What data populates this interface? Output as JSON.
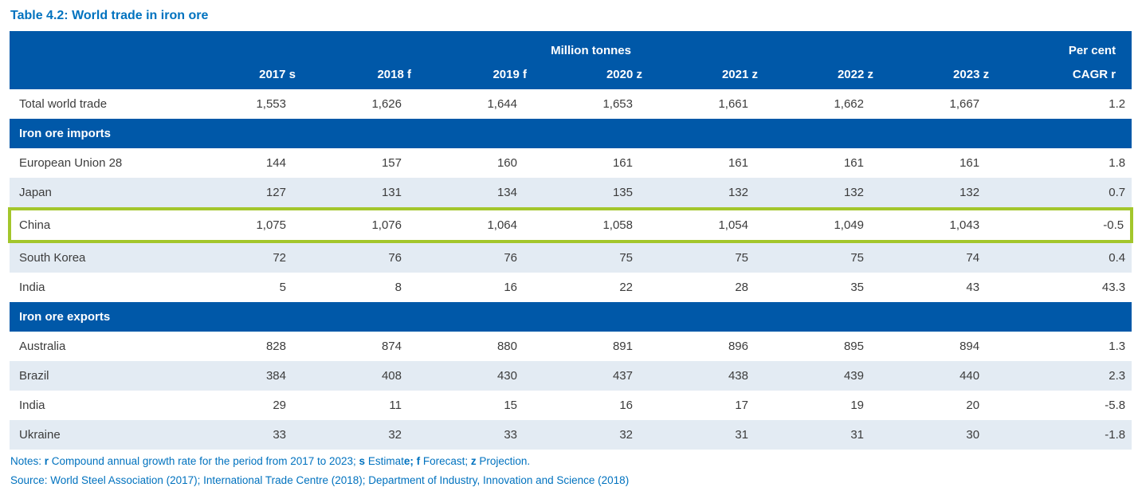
{
  "title": "Table 4.2: World trade in iron ore",
  "colors": {
    "header_bg": "#0058A8",
    "title_blue": "#0072BF",
    "row_alt": "#E3EBF3",
    "highlight_green": "#A3C62B",
    "body_text": "#3C3C3C"
  },
  "table": {
    "unit_header": "Million tonnes",
    "percent_header": "Per cent",
    "columns": [
      "2017 s",
      "2018 f",
      "2019 f",
      "2020 z",
      "2021 z",
      "2022 z",
      "2023 z",
      "CAGR r"
    ],
    "rows": [
      {
        "type": "data",
        "label": "Total world trade",
        "values": [
          "1,553",
          "1,626",
          "1,644",
          "1,653",
          "1,661",
          "1,662",
          "1,667",
          "1.2"
        ],
        "shaded": false,
        "highlighted": false
      },
      {
        "type": "section",
        "label": "Iron ore imports"
      },
      {
        "type": "data",
        "label": "European Union 28",
        "values": [
          "144",
          "157",
          "160",
          "161",
          "161",
          "161",
          "161",
          "1.8"
        ],
        "shaded": false,
        "highlighted": false
      },
      {
        "type": "data",
        "label": "Japan",
        "values": [
          "127",
          "131",
          "134",
          "135",
          "132",
          "132",
          "132",
          "0.7"
        ],
        "shaded": true,
        "highlighted": false
      },
      {
        "type": "data",
        "label": "China",
        "values": [
          "1,075",
          "1,076",
          "1,064",
          "1,058",
          "1,054",
          "1,049",
          "1,043",
          "-0.5"
        ],
        "shaded": false,
        "highlighted": true
      },
      {
        "type": "data",
        "label": "South Korea",
        "values": [
          "72",
          "76",
          "76",
          "75",
          "75",
          "75",
          "74",
          "0.4"
        ],
        "shaded": true,
        "highlighted": false
      },
      {
        "type": "data",
        "label": "India",
        "values": [
          "5",
          "8",
          "16",
          "22",
          "28",
          "35",
          "43",
          "43.3"
        ],
        "shaded": false,
        "highlighted": false
      },
      {
        "type": "section",
        "label": "Iron ore exports"
      },
      {
        "type": "data",
        "label": "Australia",
        "values": [
          "828",
          "874",
          "880",
          "891",
          "896",
          "895",
          "894",
          "1.3"
        ],
        "shaded": false,
        "highlighted": false
      },
      {
        "type": "data",
        "label": "Brazil",
        "values": [
          "384",
          "408",
          "430",
          "437",
          "438",
          "439",
          "440",
          "2.3"
        ],
        "shaded": true,
        "highlighted": false
      },
      {
        "type": "data",
        "label": "India",
        "values": [
          "29",
          "11",
          "15",
          "16",
          "17",
          "19",
          "20",
          "-5.8"
        ],
        "shaded": false,
        "highlighted": false
      },
      {
        "type": "data",
        "label": "Ukraine",
        "values": [
          "33",
          "32",
          "33",
          "32",
          "31",
          "31",
          "30",
          "-1.8"
        ],
        "shaded": true,
        "highlighted": false
      }
    ]
  },
  "notes": {
    "segments": [
      {
        "text": "Notes: ",
        "bold": false
      },
      {
        "text": "r",
        "bold": true
      },
      {
        "text": " Compound annual growth rate for the period from 2017 to 2023; ",
        "bold": false
      },
      {
        "text": "s",
        "bold": true
      },
      {
        "text": " Estimat",
        "bold": false
      },
      {
        "text": "e; f",
        "bold": true
      },
      {
        "text": " Forecast; ",
        "bold": false
      },
      {
        "text": "z",
        "bold": true
      },
      {
        "text": " Projection.",
        "bold": false
      }
    ]
  },
  "source": "Source: World Steel Association (2017); International Trade Centre (2018); Department of Industry, Innovation and Science (2018)"
}
